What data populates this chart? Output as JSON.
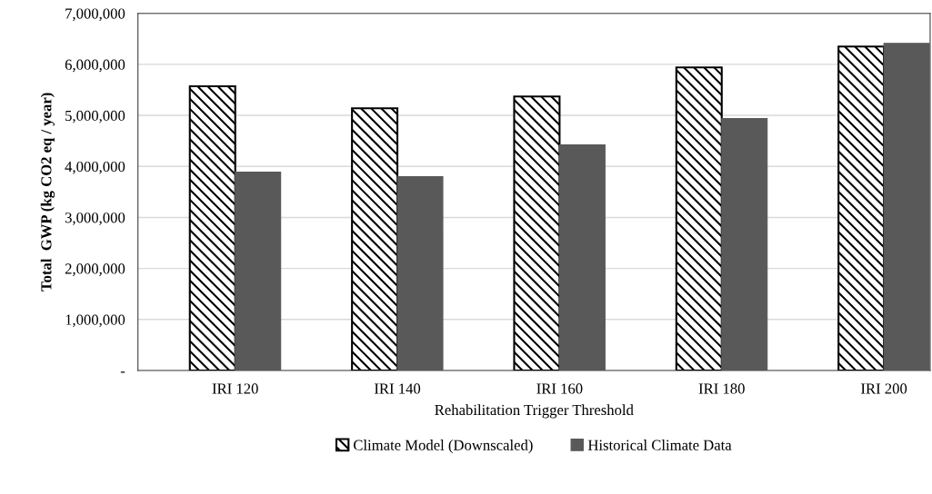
{
  "chart_data": {
    "type": "bar",
    "xlabel": "Rehabilitation Trigger Threshold",
    "ylabel": "Total  GWP (kg CO2 eq / year)",
    "categories": [
      "IRI 120",
      "IRI 140",
      "IRI 160",
      "IRI 180",
      "IRI 200"
    ],
    "series": [
      {
        "name": "Climate Model (Downscaled)",
        "color": "#000000",
        "values": [
          5570000,
          5140000,
          5370000,
          5940000,
          6350000
        ]
      },
      {
        "name": "Historical Climate Data",
        "color": "#595959",
        "values": [
          3890000,
          3800000,
          4420000,
          4940000,
          6410000
        ]
      }
    ],
    "ylim": [
      0,
      7000000
    ],
    "yticks": [
      {
        "value": 0,
        "label": "-"
      },
      {
        "value": 1000000,
        "label": "1,000,000"
      },
      {
        "value": 2000000,
        "label": "2,000,000"
      },
      {
        "value": 3000000,
        "label": "3,000,000"
      },
      {
        "value": 4000000,
        "label": "4,000,000"
      },
      {
        "value": 5000000,
        "label": "5,000,000"
      },
      {
        "value": 6000000,
        "label": "6,000,000"
      },
      {
        "value": 7000000,
        "label": "7,000,000"
      }
    ],
    "grid": "y",
    "legend": "bottom"
  }
}
